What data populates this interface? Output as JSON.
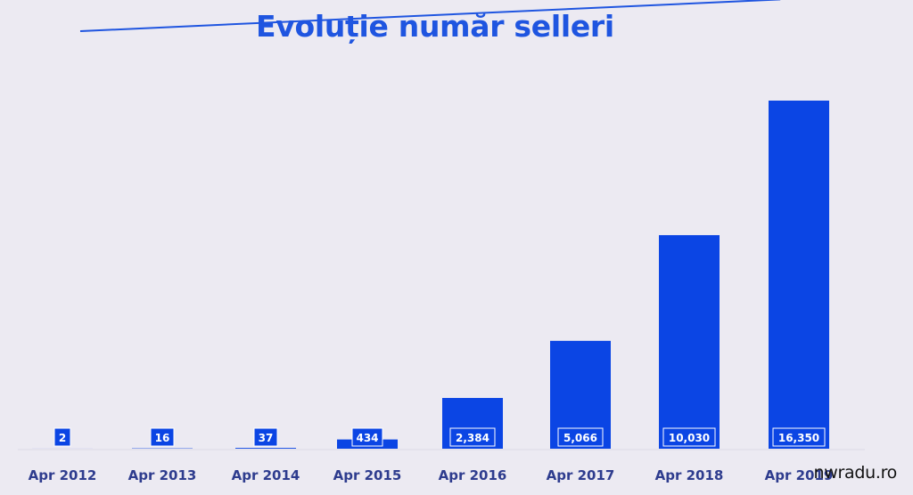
{
  "watermark": "nwradu.ro",
  "colors": {
    "bar": "#0b45e4",
    "label_text": "#ffffff",
    "axis_text": "#2e3c8e",
    "title": "#1f55e0"
  },
  "chart_data": {
    "type": "bar",
    "title": "Evoluție număr selleri",
    "categories": [
      "Apr 2012",
      "Apr 2013",
      "Apr 2014",
      "Apr 2015",
      "Apr 2016",
      "Apr 2017",
      "Apr 2018",
      "Apr 2019"
    ],
    "values": [
      2,
      16,
      37,
      434,
      2384,
      5066,
      10030,
      16350
    ],
    "data_labels": [
      "2",
      "16",
      "37",
      "434",
      "2,384",
      "5,066",
      "10,030",
      "16,350"
    ],
    "ylim": [
      0,
      16350
    ],
    "grid": false,
    "legend": "none"
  }
}
